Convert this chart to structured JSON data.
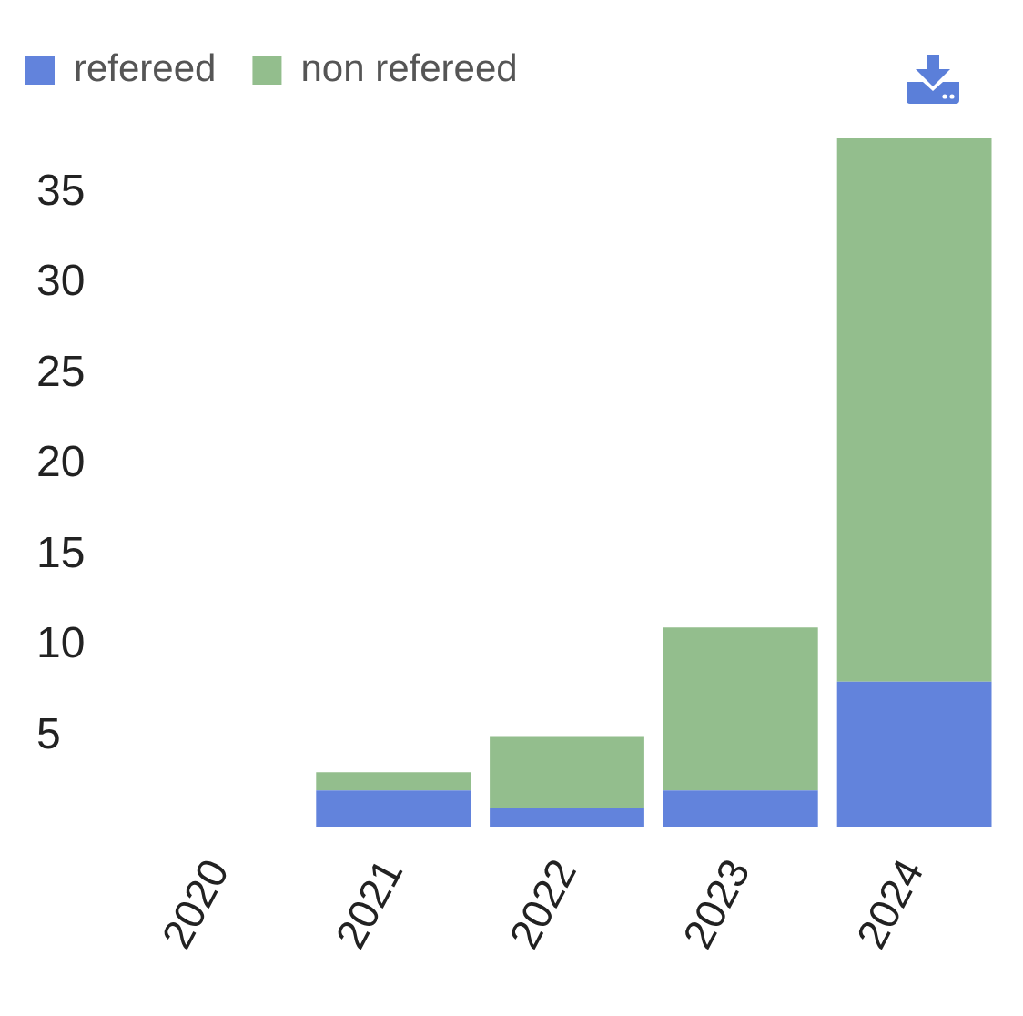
{
  "chart_data": {
    "type": "bar",
    "categories": [
      "2020",
      "2021",
      "2022",
      "2023",
      "2024"
    ],
    "series": [
      {
        "name": "refereed",
        "color": "#6283dc",
        "values": [
          0,
          2,
          1,
          2,
          8
        ]
      },
      {
        "name": "non refereed",
        "color": "#93be8d",
        "values": [
          0,
          1,
          4,
          9,
          30
        ]
      }
    ],
    "stacked": true,
    "ylim": [
      0,
      38
    ],
    "yticks": [
      5,
      10,
      15,
      20,
      25,
      30,
      35
    ],
    "grid": false,
    "legend": "top left"
  }
}
